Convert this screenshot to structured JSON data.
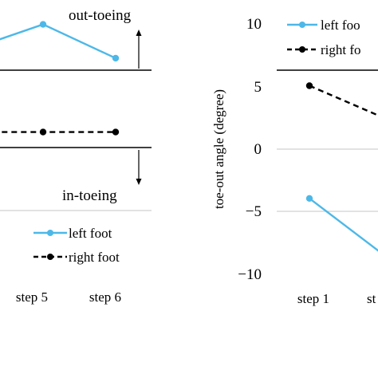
{
  "chart_data": [
    {
      "type": "line",
      "title": "",
      "xlabel": "",
      "ylabel": "",
      "categories": [
        "step 5",
        "step 6"
      ],
      "annotations": {
        "top": "out-toeing",
        "bottom": "in-toeing"
      },
      "series": [
        {
          "name": "left foot",
          "color": "#4db8e8",
          "style": "solid",
          "marker": "circle",
          "points": [
            {
              "x": 4.3,
              "y": 8.5
            },
            {
              "x": 5,
              "y": 9.9
            },
            {
              "x": 6,
              "y": 7.2
            }
          ]
        },
        {
          "name": "right foot",
          "color": "#000000",
          "style": "dashed",
          "marker": "circle",
          "points": [
            {
              "x": 4.3,
              "y": 1.3
            },
            {
              "x": 5,
              "y": 1.3
            },
            {
              "x": 6,
              "y": 1.3
            }
          ]
        }
      ],
      "reference_lines": [
        6.3,
        -1.3
      ],
      "ylim": [
        -10,
        11
      ],
      "legend_position": "bottom-right",
      "grid": false
    },
    {
      "type": "line",
      "title": "",
      "xlabel": "",
      "ylabel": "toe-out angle (degree)",
      "categories": [
        "step 1",
        "st"
      ],
      "yticks": [
        10,
        5,
        0,
        -5,
        -10
      ],
      "ytick_labels": [
        "10",
        "5",
        "0",
        "−5",
        "−10"
      ],
      "series": [
        {
          "name": "left foo",
          "color": "#4db8e8",
          "style": "solid",
          "marker": "circle",
          "points": [
            {
              "x": 1,
              "y": -4
            },
            {
              "x": 2,
              "y": -8.4
            }
          ]
        },
        {
          "name": "right fo",
          "color": "#000000",
          "style": "dashed",
          "marker": "circle",
          "points": [
            {
              "x": 1,
              "y": 5
            },
            {
              "x": 2,
              "y": 2.5
            }
          ]
        }
      ],
      "reference_lines": [
        6.3,
        0,
        -5
      ],
      "ylim": [
        -10,
        11
      ],
      "legend_position": "top-right",
      "grid": false
    }
  ]
}
